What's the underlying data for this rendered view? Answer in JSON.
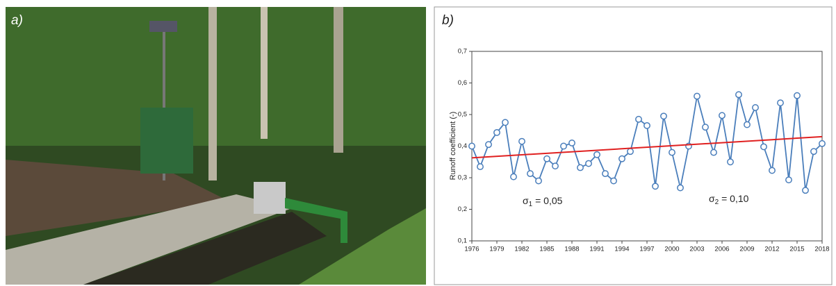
{
  "photo": {
    "label": "a)"
  },
  "chart_data": {
    "type": "line",
    "panel_label": "b)",
    "y_label": "Runoff coefficient (-)",
    "grid": false,
    "x": [
      1976,
      1977,
      1978,
      1979,
      1980,
      1981,
      1982,
      1983,
      1984,
      1985,
      1986,
      1987,
      1988,
      1989,
      1990,
      1991,
      1992,
      1993,
      1994,
      1995,
      1996,
      1997,
      1998,
      1999,
      2000,
      2001,
      2002,
      2003,
      2004,
      2005,
      2006,
      2007,
      2008,
      2009,
      2010,
      2011,
      2012,
      2013,
      2014,
      2015,
      2016,
      2017,
      2018
    ],
    "series": [
      {
        "color": "#4a7ebb",
        "values": [
          0.4,
          0.335,
          0.405,
          0.443,
          0.475,
          0.303,
          0.415,
          0.313,
          0.29,
          0.36,
          0.337,
          0.4,
          0.41,
          0.332,
          0.345,
          0.373,
          0.313,
          0.29,
          0.36,
          0.383,
          0.485,
          0.465,
          0.273,
          0.495,
          0.38,
          0.268,
          0.4,
          0.558,
          0.46,
          0.38,
          0.497,
          0.35,
          0.563,
          0.468,
          0.522,
          0.398,
          0.323,
          0.537,
          0.293,
          0.56,
          0.26,
          0.383,
          0.408
        ]
      }
    ],
    "trend": {
      "color": "#e02020",
      "x": [
        1976,
        2018
      ],
      "values": [
        0.363,
        0.43
      ]
    },
    "xlim": [
      1976,
      2018
    ],
    "xticks": [
      1976,
      1979,
      1982,
      1985,
      1988,
      1991,
      1994,
      1997,
      2000,
      2003,
      2006,
      2009,
      2012,
      2015,
      2018
    ],
    "ylim": [
      0.1,
      0.7
    ],
    "yticks": [
      {
        "value": 0.1,
        "label": "0,1"
      },
      {
        "value": 0.2,
        "label": "0,2"
      },
      {
        "value": 0.3,
        "label": "0,3"
      },
      {
        "value": 0.4,
        "label": "0,4"
      },
      {
        "value": 0.5,
        "label": "0,5"
      },
      {
        "value": 0.6,
        "label": "0,6"
      },
      {
        "value": 0.7,
        "label": "0,7"
      }
    ],
    "annotations": [
      {
        "symbol": "σ",
        "subscript": "1",
        "text": " = 0,05"
      },
      {
        "symbol": "σ",
        "subscript": "2",
        "text": " = 0,10"
      }
    ]
  }
}
